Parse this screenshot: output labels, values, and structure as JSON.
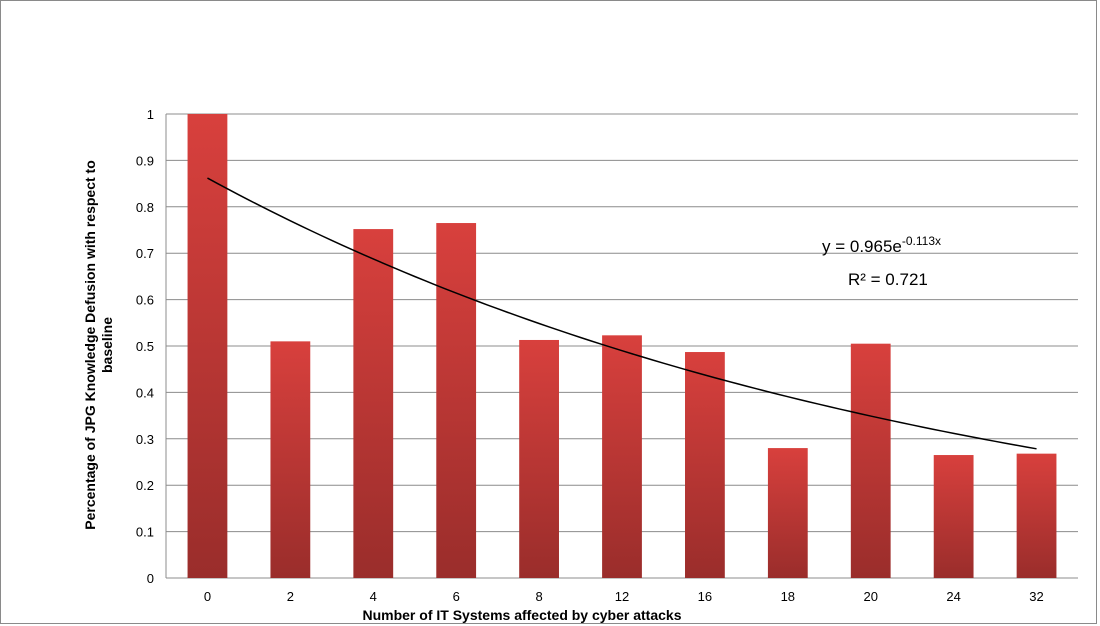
{
  "chart_data": {
    "type": "bar",
    "title": "",
    "xlabel": "Number of IT Systems affected by cyber attacks",
    "ylabel_line1": "Percentage of JPG Knowledge Defusion with respect to",
    "ylabel_line2": "baseline",
    "categories": [
      "0",
      "2",
      "4",
      "6",
      "8",
      "12",
      "16",
      "18",
      "20",
      "24",
      "32"
    ],
    "series": [
      {
        "values": [
          1.0,
          0.51,
          0.752,
          0.765,
          0.513,
          0.523,
          0.487,
          0.28,
          0.505,
          0.265,
          0.268
        ]
      }
    ],
    "ylim": [
      0,
      1
    ],
    "yticks": [
      "0",
      "0.1",
      "0.2",
      "0.3",
      "0.4",
      "0.5",
      "0.6",
      "0.7",
      "0.8",
      "0.9",
      "1"
    ],
    "grid": true,
    "legend": "none",
    "trendline": {
      "type": "exponential",
      "a": 0.965,
      "b": -0.113,
      "equation_prefix": "y = 0.965e",
      "equation_exponent": "-0.113x",
      "r_squared_label": "R² = 0.721"
    },
    "colors": {
      "bar_top": "#d8403d",
      "bar_bottom": "#9a2d2b",
      "grid": "#8c8c8c",
      "trend": "#000000"
    }
  }
}
